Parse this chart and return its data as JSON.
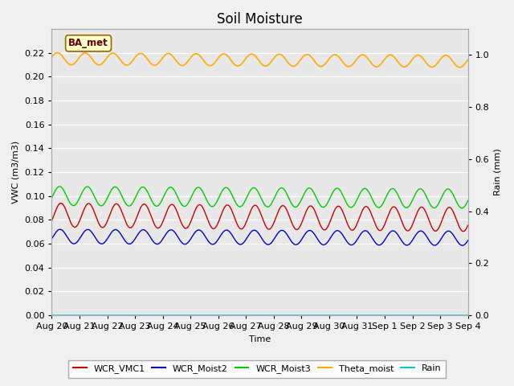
{
  "title": "Soil Moisture",
  "xlabel": "Time",
  "ylabel_left": "VWC (m3/m3)",
  "ylabel_right": "Rain (mm)",
  "ylim_left": [
    0.0,
    0.24
  ],
  "ylim_right": [
    0.0,
    1.1
  ],
  "annotation_text": "BA_met",
  "colors": {
    "WCR_VMC1": "#cc0000",
    "WCR_Moist2": "#0000cc",
    "WCR_Moist3": "#00cc00",
    "Theta_moist": "#ffaa00",
    "Rain": "#00cccc"
  },
  "fig_background": "#f0f0f0",
  "axes_background": "#e8e8e8",
  "title_fontsize": 12,
  "axis_fontsize": 8,
  "legend_fontsize": 8,
  "yticks_left": [
    0.0,
    0.02,
    0.04,
    0.06,
    0.08,
    0.1,
    0.12,
    0.14,
    0.16,
    0.18,
    0.2,
    0.22
  ],
  "yticks_right": [
    0.0,
    0.2,
    0.4,
    0.6,
    0.8,
    1.0
  ],
  "legend_labels": [
    "WCR_VMC1",
    "WCR_Moist2",
    "WCR_Moist3",
    "Theta_moist",
    "Rain"
  ]
}
